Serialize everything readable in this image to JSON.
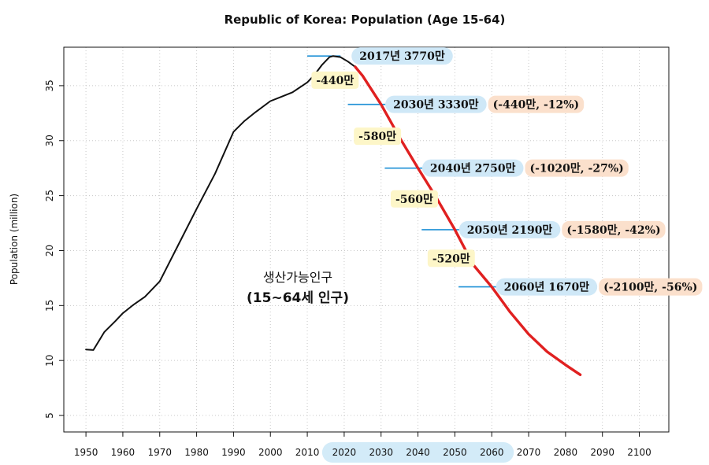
{
  "chart_data": {
    "type": "line",
    "title": "Republic of Korea: Population (Age 15-64)",
    "ylabel": "Population (million)",
    "xlabel": "",
    "xlim": [
      1944,
      2108
    ],
    "ylim": [
      3.5,
      38.5
    ],
    "x_ticks": [
      1950,
      1960,
      1970,
      1980,
      1990,
      2000,
      2010,
      2020,
      2030,
      2040,
      2050,
      2060,
      2070,
      2080,
      2090,
      2100
    ],
    "y_ticks": [
      5,
      10,
      15,
      20,
      25,
      30,
      35
    ],
    "grid": true,
    "highlighted_x_range": [
      2020,
      2060
    ],
    "series": [
      {
        "color": "#111111",
        "x": [
          1950,
          1952,
          1955,
          1958,
          1960,
          1963,
          1966,
          1970,
          1975,
          1980,
          1985,
          1990,
          1993,
          1996,
          2000,
          2003,
          2006,
          2010,
          2012,
          2014,
          2016,
          2017,
          2019,
          2021,
          2023
        ],
        "y": [
          11.0,
          10.95,
          12.6,
          13.6,
          14.3,
          15.1,
          15.8,
          17.2,
          20.5,
          23.8,
          27.0,
          30.8,
          31.8,
          32.6,
          33.6,
          34.0,
          34.4,
          35.3,
          36.0,
          36.9,
          37.6,
          37.7,
          37.6,
          37.2,
          36.7
        ]
      },
      {
        "color": "#e02020",
        "x": [
          2023,
          2025,
          2030,
          2035,
          2040,
          2045,
          2050,
          2055,
          2060,
          2065,
          2070,
          2075,
          2080,
          2084
        ],
        "y": [
          36.7,
          35.9,
          33.3,
          30.3,
          27.5,
          24.8,
          21.9,
          18.7,
          16.7,
          14.4,
          12.4,
          10.8,
          9.6,
          8.7
        ]
      }
    ],
    "markers": [
      {
        "year": 2017,
        "value": 37.7,
        "x0": 2010,
        "x1": 2019
      },
      {
        "year": 2030,
        "value": 33.3,
        "x0": 2021,
        "x1": 2032
      },
      {
        "year": 2040,
        "value": 27.5,
        "x0": 2031,
        "x1": 2042
      },
      {
        "year": 2050,
        "value": 21.9,
        "x0": 2041,
        "x1": 2052
      },
      {
        "year": 2060,
        "value": 16.7,
        "x0": 2051,
        "x1": 2062
      }
    ],
    "annotations": {
      "peak": "2017년 3770만",
      "points": [
        {
          "label": "2030년 3330만",
          "change": "(-440만, -12%)",
          "decade_drop": "-440만"
        },
        {
          "label": "2040년 2750만",
          "change": "(-1020만, -27%)",
          "decade_drop": "-580만"
        },
        {
          "label": "2050년 2190만",
          "change": "(-1580만, -42%)",
          "decade_drop": "-560만"
        },
        {
          "label": "2060년 1670만",
          "change": "(-2100만, -56%)",
          "decade_drop": "-520만"
        }
      ],
      "center_line1": "생산가능인구",
      "center_line2": "(15~64세 인구)"
    },
    "colors": {
      "historical": "#111111",
      "projection": "#e02020",
      "marker": "#1e90d6",
      "label_bg": "#cfe8f7",
      "change_bg": "#fbe0cc",
      "drop_bg": "#fdf6c8",
      "highlight_bg": "#d3ebf8"
    }
  }
}
